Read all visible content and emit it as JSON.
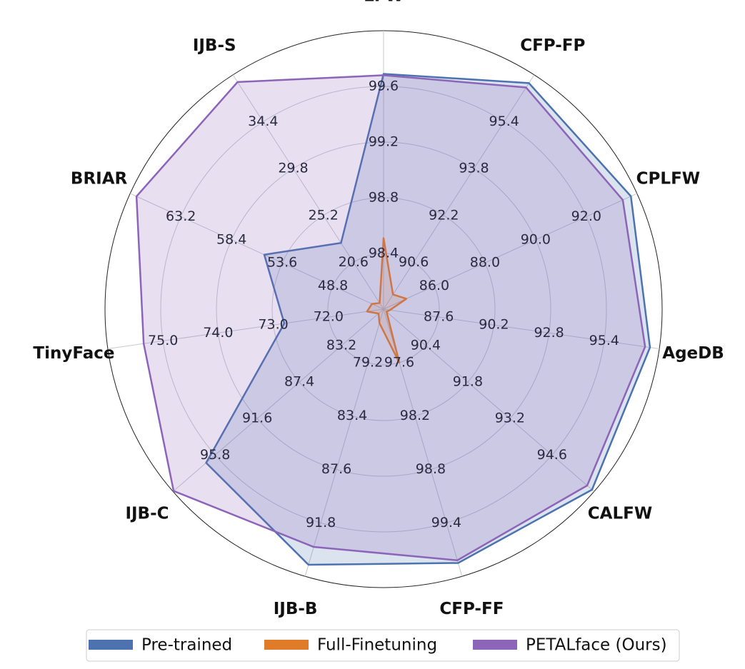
{
  "chart_data": {
    "type": "radar",
    "axes": [
      {
        "label": "LFW",
        "lim": [
          98.0,
          100.0
        ],
        "ticks": [
          98.4,
          98.8,
          99.2,
          99.6
        ]
      },
      {
        "label": "CFP-FP",
        "lim": [
          89.0,
          97.0
        ],
        "ticks": [
          90.6,
          92.2,
          93.8,
          95.4
        ]
      },
      {
        "label": "CPLFW",
        "lim": [
          84.0,
          94.0
        ],
        "ticks": [
          {
            "value": 86,
            "label": "86.0"
          },
          {
            "value": 88,
            "label": "88.0"
          },
          {
            "value": 90,
            "label": "90.0"
          },
          {
            "value": 92,
            "label": "92.0"
          }
        ]
      },
      {
        "label": "AgeDB",
        "lim": [
          85.0,
          98.0
        ],
        "ticks": [
          87.6,
          90.2,
          92.8,
          95.4
        ]
      },
      {
        "label": "CALFW",
        "lim": [
          89.0,
          96.0
        ],
        "ticks": [
          90.4,
          91.8,
          93.2,
          94.6
        ]
      },
      {
        "label": "CFP-FF",
        "lim": [
          97.0,
          100.0
        ],
        "ticks": [
          97.6,
          98.2,
          98.8,
          99.4
        ]
      },
      {
        "label": "IJB-B",
        "lim": [
          75.0,
          96.0
        ],
        "ticks": [
          79.2,
          83.4,
          87.6,
          91.8
        ]
      },
      {
        "label": "IJB-C",
        "lim": [
          79.0,
          100.0
        ],
        "ticks": [
          83.2,
          87.4,
          91.6,
          95.8
        ]
      },
      {
        "label": "TinyFace",
        "lim": [
          71.0,
          76.0
        ],
        "ticks": [
          {
            "value": 72,
            "label": "72.0"
          },
          {
            "value": 73,
            "label": "73.0"
          },
          {
            "value": 74,
            "label": "74.0"
          },
          {
            "value": 75,
            "label": "75.0"
          }
        ]
      },
      {
        "label": "BRIAR",
        "lim": [
          44.0,
          68.0
        ],
        "ticks": [
          48.8,
          53.6,
          58.4,
          63.2
        ]
      },
      {
        "label": "IJB-S",
        "lim": [
          16.0,
          39.0
        ],
        "ticks": [
          20.6,
          25.2,
          29.8,
          34.4
        ]
      }
    ],
    "series": [
      {
        "name": "Pre-trained",
        "color": "#4c72b0",
        "values": [
          99.69,
          96.72,
          93.76,
          97.56,
          95.93,
          99.85,
          95.09,
          96.7,
          72.8,
          55.3,
          22.5
        ]
      },
      {
        "name": "Full-Finetuning",
        "color": "#e07b2a",
        "values": [
          98.51,
          89.5,
          84.9,
          85.3,
          89.1,
          97.6,
          76.1,
          79.5,
          71.3,
          45.1,
          16.6
        ]
      },
      {
        "name": "PETALface (Ours)",
        "color": "#8c64b8",
        "values": [
          99.68,
          96.57,
          93.44,
          97.33,
          95.77,
          99.82,
          93.69,
          99.94,
          75.35,
          67.4,
          38.3
        ]
      }
    ],
    "legend": "bottom"
  }
}
